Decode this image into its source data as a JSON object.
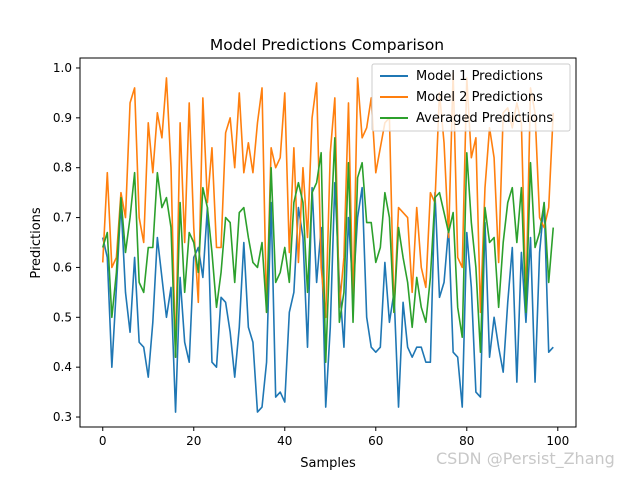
{
  "chart_data": {
    "type": "line",
    "title": "Model Predictions Comparison",
    "xlabel": "Samples",
    "ylabel": "Predictions",
    "xlim": [
      -5,
      104
    ],
    "ylim": [
      0.28,
      1.02
    ],
    "xticks": [
      0,
      20,
      40,
      60,
      80,
      100
    ],
    "yticks": [
      0.3,
      0.4,
      0.5,
      0.6,
      0.7,
      0.8,
      0.9,
      1.0
    ],
    "xtick_labels": [
      "0",
      "20",
      "40",
      "60",
      "80",
      "100"
    ],
    "ytick_labels": [
      "0.3",
      "0.4",
      "0.5",
      "0.6",
      "0.7",
      "0.8",
      "0.9",
      "1.0"
    ],
    "legend_position": "top-right",
    "grid": false,
    "series": [
      {
        "name": "Model 1 Predictions",
        "color": "#1f77b4",
        "values": [
          0.66,
          0.62,
          0.4,
          0.56,
          0.73,
          0.55,
          0.47,
          0.62,
          0.45,
          0.44,
          0.38,
          0.49,
          0.66,
          0.58,
          0.5,
          0.56,
          0.31,
          0.58,
          0.45,
          0.41,
          0.62,
          0.64,
          0.58,
          0.72,
          0.41,
          0.4,
          0.54,
          0.53,
          0.47,
          0.38,
          0.48,
          0.65,
          0.48,
          0.45,
          0.31,
          0.32,
          0.41,
          0.73,
          0.34,
          0.35,
          0.33,
          0.51,
          0.55,
          0.72,
          0.66,
          0.44,
          0.76,
          0.57,
          0.68,
          0.32,
          0.48,
          0.77,
          0.57,
          0.44,
          0.7,
          0.55,
          0.7,
          0.76,
          0.5,
          0.44,
          0.43,
          0.44,
          0.61,
          0.49,
          0.55,
          0.32,
          0.53,
          0.44,
          0.42,
          0.44,
          0.44,
          0.41,
          0.41,
          0.75,
          0.54,
          0.57,
          0.68,
          0.43,
          0.42,
          0.32,
          0.67,
          0.56,
          0.35,
          0.34,
          0.69,
          0.42,
          0.5,
          0.44,
          0.39,
          0.53,
          0.64,
          0.37,
          0.63,
          0.49,
          0.66,
          0.37,
          0.63,
          0.73,
          0.43,
          0.44
        ]
      },
      {
        "name": "Model 2 Predictions",
        "color": "#ff7f0e",
        "values": [
          0.61,
          0.79,
          0.6,
          0.62,
          0.75,
          0.7,
          0.93,
          0.96,
          0.7,
          0.65,
          0.89,
          0.79,
          0.91,
          0.86,
          0.98,
          0.8,
          0.42,
          0.89,
          0.65,
          0.93,
          0.68,
          0.53,
          0.94,
          0.73,
          0.84,
          0.64,
          0.64,
          0.87,
          0.9,
          0.8,
          0.95,
          0.79,
          0.85,
          0.79,
          0.89,
          0.96,
          0.51,
          0.84,
          0.8,
          0.82,
          0.95,
          0.63,
          0.84,
          0.61,
          0.8,
          0.66,
          0.9,
          0.97,
          0.6,
          0.5,
          0.83,
          0.94,
          0.52,
          0.62,
          0.93,
          0.52,
          0.98,
          0.86,
          0.88,
          0.94,
          0.79,
          0.84,
          0.89,
          0.9,
          0.51,
          0.72,
          0.71,
          0.7,
          0.55,
          0.72,
          0.6,
          0.56,
          0.75,
          0.73,
          0.95,
          0.85,
          0.66,
          0.99,
          0.62,
          0.6,
          0.98,
          0.82,
          0.86,
          0.51,
          0.76,
          0.88,
          0.82,
          0.61,
          0.91,
          0.92,
          0.88,
          0.93,
          0.89,
          0.53,
          0.96,
          0.91,
          0.7,
          0.68,
          0.72,
          0.91
        ]
      },
      {
        "name": "Averaged Predictions",
        "color": "#2ca02c",
        "values": [
          0.64,
          0.67,
          0.5,
          0.59,
          0.74,
          0.63,
          0.7,
          0.79,
          0.57,
          0.55,
          0.64,
          0.64,
          0.79,
          0.72,
          0.74,
          0.68,
          0.42,
          0.73,
          0.55,
          0.67,
          0.65,
          0.59,
          0.76,
          0.72,
          0.63,
          0.52,
          0.59,
          0.7,
          0.69,
          0.57,
          0.71,
          0.72,
          0.66,
          0.61,
          0.6,
          0.65,
          0.51,
          0.8,
          0.57,
          0.59,
          0.64,
          0.57,
          0.73,
          0.77,
          0.73,
          0.55,
          0.75,
          0.77,
          0.83,
          0.41,
          0.66,
          0.86,
          0.49,
          0.55,
          0.81,
          0.49,
          0.78,
          0.81,
          0.69,
          0.69,
          0.61,
          0.64,
          0.75,
          0.7,
          0.51,
          0.68,
          0.62,
          0.57,
          0.48,
          0.58,
          0.52,
          0.49,
          0.58,
          0.74,
          0.75,
          0.71,
          0.67,
          0.71,
          0.52,
          0.46,
          0.83,
          0.69,
          0.6,
          0.43,
          0.72,
          0.65,
          0.66,
          0.52,
          0.65,
          0.73,
          0.76,
          0.65,
          0.76,
          0.51,
          0.81,
          0.64,
          0.67,
          0.73,
          0.57,
          0.68
        ]
      }
    ]
  },
  "watermark": "CSDN @Persist_Zhang"
}
